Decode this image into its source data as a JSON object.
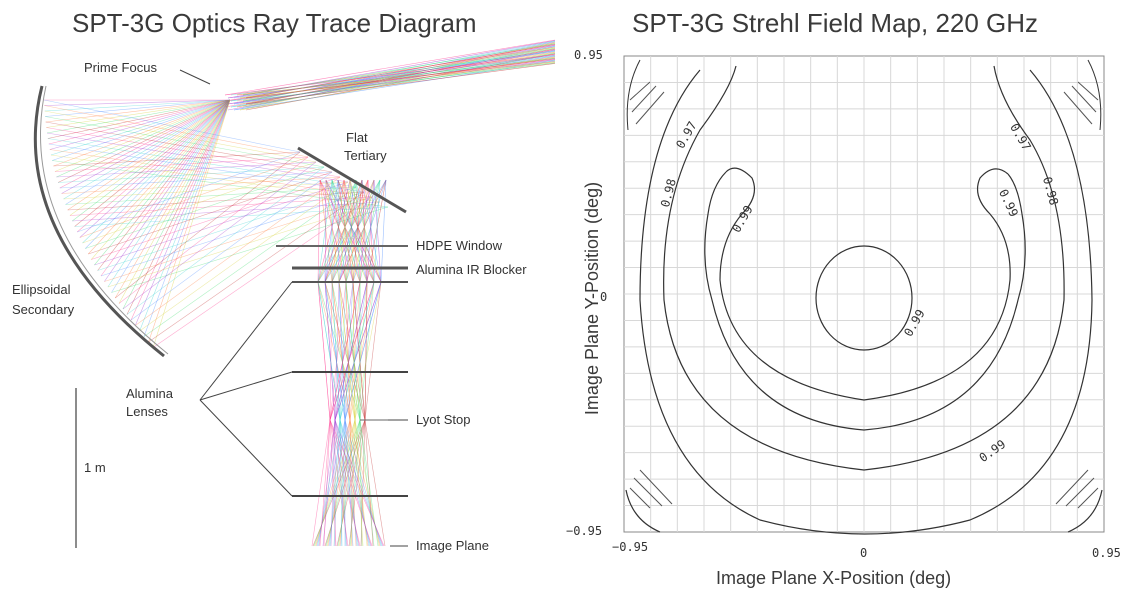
{
  "left_panel": {
    "title": "SPT-3G Optics Ray Trace Diagram",
    "labels": {
      "prime_focus": "Prime Focus",
      "flat_tertiary_1": "Flat",
      "flat_tertiary_2": "Tertiary",
      "hdpe_window": "HDPE Window",
      "alumina_ir_blocker": "Alumina IR Blocker",
      "ellipsoidal_1": "Ellipsoidal",
      "ellipsoidal_2": "Secondary",
      "alumina_lenses_1": "Alumina",
      "alumina_lenses_2": "Lenses",
      "lyot_stop": "Lyot Stop",
      "scale_bar": "1 m",
      "image_plane": "Image Plane"
    },
    "ray_colors": [
      "#ff2d8a",
      "#9c2fd0",
      "#2fd0d0",
      "#4a8cff",
      "#ff7a3a",
      "#d4d02f",
      "#3adb6a",
      "#c02a2a"
    ]
  },
  "right_panel": {
    "title": "SPT-3G Strehl Field Map, 220 GHz",
    "xlabel": "Image Plane X-Position (deg)",
    "ylabel": "Image Plane Y-Position (deg)",
    "x_ticks": [
      "−0.95",
      "0",
      "0.95"
    ],
    "y_ticks": [
      "0.95",
      "0",
      "−0.95"
    ],
    "contour_labels": {
      "c097_left": "0.97",
      "c097_right": "0.97",
      "c098_left": "0.98",
      "c098_right": "0.98",
      "c099_left": "0.99",
      "c099_right": "0.99",
      "c099_center": "0.99",
      "c099_bottom": "0.99"
    }
  },
  "chart_data": {
    "type": "heatmap",
    "title": "SPT-3G Strehl Field Map, 220 GHz",
    "xlabel": "Image Plane X-Position (deg)",
    "ylabel": "Image Plane Y-Position (deg)",
    "xlim": [
      -0.95,
      0.95
    ],
    "ylim": [
      -0.95,
      0.95
    ],
    "contour_levels": [
      0.97,
      0.98,
      0.99
    ],
    "grid": true
  }
}
